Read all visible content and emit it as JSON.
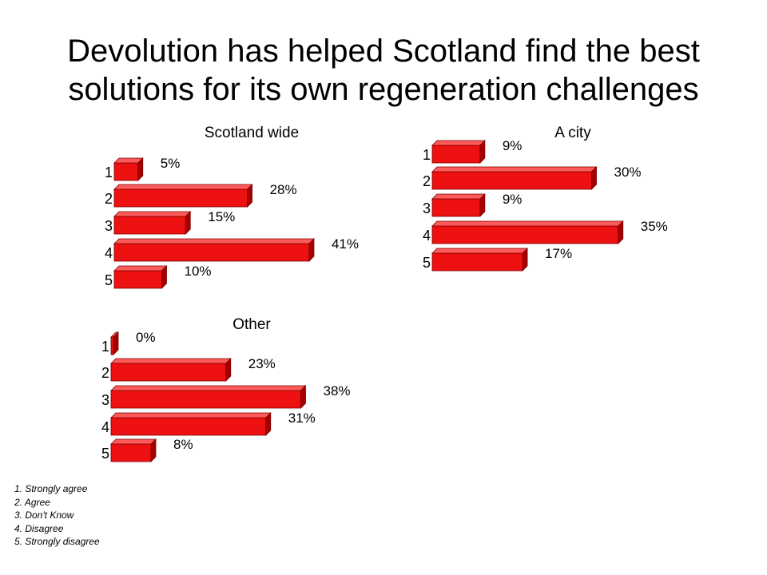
{
  "title_line1": "Devolution has helped Scotland find the best",
  "title_line2": "solutions for its own regeneration challenges",
  "colors": {
    "bar_front": "#ee1111",
    "bar_top": "#ff5a5a",
    "bar_side": "#a80000",
    "bar_edge": "#7a0000"
  },
  "legend": [
    "1. Strongly agree",
    "2. Agree",
    "3. Don't Know",
    "4. Disagree",
    "5. Strongly disagree"
  ],
  "chart_data": [
    {
      "type": "bar",
      "orientation": "horizontal",
      "title": "Scotland wide",
      "categories": [
        "1",
        "2",
        "3",
        "4",
        "5"
      ],
      "values": [
        5,
        28,
        15,
        41,
        10
      ],
      "labels": [
        "5%",
        "28%",
        "15%",
        "41%",
        "10%"
      ]
    },
    {
      "type": "bar",
      "orientation": "horizontal",
      "title": "A city",
      "categories": [
        "1",
        "2",
        "3",
        "4",
        "5"
      ],
      "values": [
        9,
        30,
        9,
        35,
        17
      ],
      "labels": [
        "9%",
        "30%",
        "9%",
        "35%",
        "17%"
      ]
    },
    {
      "type": "bar",
      "orientation": "horizontal",
      "title": "Other",
      "categories": [
        "1",
        "2",
        "3",
        "4",
        "5"
      ],
      "values": [
        0,
        23,
        38,
        31,
        8
      ],
      "labels": [
        "0%",
        "23%",
        "38%",
        "31%",
        "8%"
      ]
    }
  ]
}
